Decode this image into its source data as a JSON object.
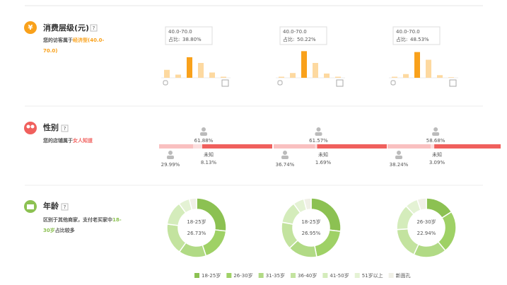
{
  "sections": [
    {
      "title": "消费层级(元)",
      "help": "?",
      "icon": "¥",
      "desc": [
        "您的访客属于",
        "经济型(40.0-70.0)"
      ]
    },
    {
      "title": "性别",
      "help": "?",
      "desc": [
        "您的店铺属于",
        "女人知道"
      ]
    },
    {
      "title": "年龄",
      "help": "?",
      "desc": [
        "区别于其他商家，支付老买家中",
        "18-30岁",
        "占比较多"
      ]
    }
  ],
  "spending": {
    "highlight": 2,
    "colors": [
      "#fdd9a0",
      "#f9a11b"
    ],
    "charts": [
      {
        "tooltip_range": "40.0-70.0",
        "tooltip_label": "占比:",
        "tooltip_value": "38.80%",
        "values": [
          15,
          6,
          38.8,
          28,
          10,
          2
        ]
      },
      {
        "tooltip_range": "40.0-70.0",
        "tooltip_label": "占比:",
        "tooltip_value": "50.22%",
        "values": [
          2,
          9,
          50.22,
          28,
          8,
          2
        ]
      },
      {
        "tooltip_range": "40.0-70.0",
        "tooltip_label": "占比:",
        "tooltip_value": "48.53%",
        "values": [
          2,
          7,
          48.53,
          34,
          5,
          1
        ]
      }
    ]
  },
  "gender": {
    "unknown": "未知",
    "colors": [
      "#f0605d",
      "#f9c0c0",
      "#fbdede"
    ],
    "charts": [
      {
        "values": [
          61.88,
          29.99,
          8.13
        ],
        "value_labels": [
          "61.88%",
          "29.99%",
          "8.13%"
        ]
      },
      {
        "values": [
          61.57,
          36.74,
          1.69
        ],
        "value_labels": [
          "61.57%",
          "36.74%",
          "1.69%"
        ]
      },
      {
        "values": [
          58.68,
          38.24,
          3.09
        ],
        "value_labels": [
          "58.68%",
          "38.24%",
          "3.09%"
        ]
      }
    ]
  },
  "age": {
    "legend": [
      "18-25岁",
      "26-30岁",
      "31-35岁",
      "36-40岁",
      "41-50岁",
      "51岁以上",
      "新面孔"
    ],
    "colors": [
      "#8cc152",
      "#9fd166",
      "#b1da85",
      "#c3e39f",
      "#d4ecbb",
      "#e4f2d4",
      "#f0f0e6"
    ],
    "charts": [
      {
        "center_name": "18-25岁",
        "center_value": "26.73%",
        "values": [
          26.73,
          18,
          15,
          17,
          13,
          6,
          4
        ]
      },
      {
        "center_name": "18-25岁",
        "center_value": "26.95%",
        "values": [
          26.95,
          20,
          16,
          15,
          12,
          6,
          4
        ]
      },
      {
        "center_name": "26-30岁",
        "center_value": "22.94%",
        "values": [
          16,
          22.94,
          18,
          17,
          14,
          7,
          5
        ]
      }
    ]
  }
}
